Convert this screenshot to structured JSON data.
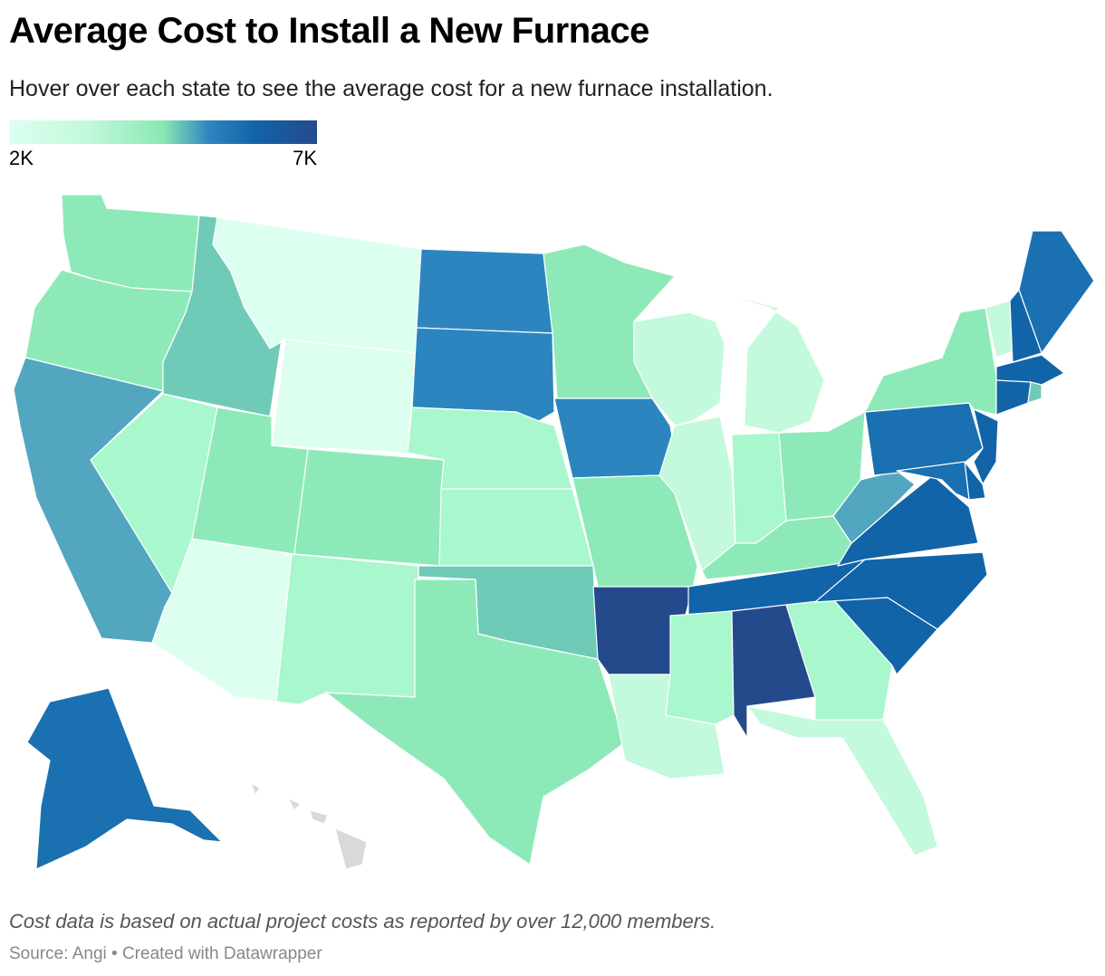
{
  "title": "Average Cost to Install a New Furnace",
  "subtitle": "Hover over each state to see the average cost for a new furnace installation.",
  "legend": {
    "min_label": "2K",
    "max_label": "7K"
  },
  "notes": "Cost data is based on actual project costs as reported by over 12,000 members.",
  "source": "Source: Angi • Created with Datawrapper",
  "colors": {
    "c1": "#dcfff0",
    "c2": "#c3f9dc",
    "c3": "#a9f7cd",
    "c4": "#8deab8",
    "c5": "#6fcbb8",
    "c6": "#52a6c0",
    "c7": "#2d85c0",
    "c8": "#1a70b0",
    "c9": "#1264a8",
    "c10": "#254a8c",
    "nodata": "#d9d9d9"
  },
  "states": [
    {
      "id": "WA",
      "color": "c4"
    },
    {
      "id": "OR",
      "color": "c4"
    },
    {
      "id": "CA",
      "color": "c6"
    },
    {
      "id": "ID",
      "color": "c5"
    },
    {
      "id": "NV",
      "color": "c3"
    },
    {
      "id": "AZ",
      "color": "c1"
    },
    {
      "id": "MT",
      "color": "c1"
    },
    {
      "id": "WY",
      "color": "c1"
    },
    {
      "id": "UT",
      "color": "c4"
    },
    {
      "id": "CO",
      "color": "c4"
    },
    {
      "id": "NM",
      "color": "c3"
    },
    {
      "id": "ND",
      "color": "c7"
    },
    {
      "id": "SD",
      "color": "c7"
    },
    {
      "id": "NE",
      "color": "c3"
    },
    {
      "id": "KS",
      "color": "c3"
    },
    {
      "id": "OK",
      "color": "c5"
    },
    {
      "id": "TX",
      "color": "c4"
    },
    {
      "id": "MN",
      "color": "c4"
    },
    {
      "id": "IA",
      "color": "c7"
    },
    {
      "id": "MO",
      "color": "c4"
    },
    {
      "id": "AR",
      "color": "c10"
    },
    {
      "id": "LA",
      "color": "c2"
    },
    {
      "id": "WI",
      "color": "c2"
    },
    {
      "id": "IL",
      "color": "c2"
    },
    {
      "id": "MI",
      "color": "c2"
    },
    {
      "id": "IN",
      "color": "c3"
    },
    {
      "id": "OH",
      "color": "c4"
    },
    {
      "id": "KY",
      "color": "c4"
    },
    {
      "id": "TN",
      "color": "c9"
    },
    {
      "id": "MS",
      "color": "c3"
    },
    {
      "id": "AL",
      "color": "c10"
    },
    {
      "id": "GA",
      "color": "c3"
    },
    {
      "id": "FL",
      "color": "c2"
    },
    {
      "id": "SC",
      "color": "c9"
    },
    {
      "id": "NC",
      "color": "c9"
    },
    {
      "id": "VA",
      "color": "c9"
    },
    {
      "id": "WV",
      "color": "c6"
    },
    {
      "id": "PA",
      "color": "c8"
    },
    {
      "id": "NY",
      "color": "c4"
    },
    {
      "id": "VT",
      "color": "c2"
    },
    {
      "id": "NH",
      "color": "c9"
    },
    {
      "id": "ME",
      "color": "c8"
    },
    {
      "id": "MA",
      "color": "c9"
    },
    {
      "id": "CT",
      "color": "c9"
    },
    {
      "id": "RI",
      "color": "c5"
    },
    {
      "id": "NJ",
      "color": "c9"
    },
    {
      "id": "DE",
      "color": "c9"
    },
    {
      "id": "MD",
      "color": "c8"
    },
    {
      "id": "AK",
      "color": "c8"
    },
    {
      "id": "HI",
      "color": "nodata"
    }
  ]
}
